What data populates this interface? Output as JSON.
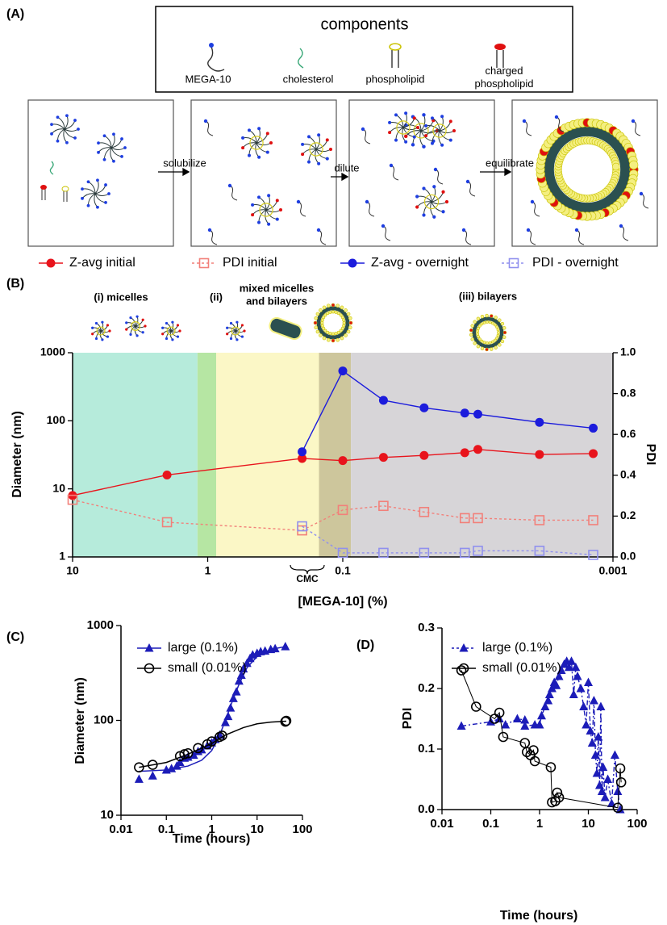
{
  "diagram": {
    "label": "(A)",
    "components_title": "components",
    "components": [
      "MEGA-10",
      "cholesterol",
      "phospholipid",
      "charged phospholipid"
    ],
    "steps": [
      "solubilize",
      "dilute",
      "equilibrate"
    ]
  },
  "chart_data": [
    {
      "type": "line",
      "panel": "(B)",
      "x_label": "[MEGA-10] (%)",
      "y_label": "Diameter (nm)",
      "y2_label": "PDI",
      "xscale": "log",
      "yscale": "log",
      "xlim": [
        10,
        0.001
      ],
      "xticks": [
        10,
        1,
        0.1,
        0.001
      ],
      "ylim": [
        1,
        1000
      ],
      "yticks": [
        1,
        10,
        100,
        1000
      ],
      "y2lim": [
        0,
        1
      ],
      "y2ticks": [
        {
          "value": 0,
          "label": "0.0"
        },
        0.2,
        0.4,
        0.6,
        0.8,
        {
          "value": 1,
          "label": "1.0"
        }
      ],
      "legend": "top",
      "regions": [
        {
          "from": 10,
          "to": 1.19,
          "color": "#b6ebdb"
        },
        {
          "from": 1.19,
          "to": 0.865,
          "color": "#b6e6a3"
        },
        {
          "from": 0.865,
          "to": 0.15,
          "color": "#fbf7c6"
        },
        {
          "from": 0.15,
          "to": 0.087,
          "color": "#cdc69c"
        },
        {
          "from": 0.087,
          "to": 0.001,
          "color": "#d7d5d8"
        }
      ],
      "annotations": [
        "(i) micelles",
        "(ii)",
        "mixed micelles",
        "and bilayers",
        "(iii) bilayers",
        "CMC"
      ],
      "series": [
        {
          "name": "Z-avg initial",
          "color": "#e8141c",
          "marker": "circle",
          "dash": false,
          "x": [
            10,
            2,
            0.2,
            0.1,
            0.05,
            0.025,
            0.0125,
            0.01,
            0.0035,
            0.0014
          ],
          "values": [
            8,
            16,
            28,
            26,
            29,
            31,
            34,
            38,
            32,
            33
          ]
        },
        {
          "name": "PDI initial",
          "color": "#f2807a",
          "marker": "square-open",
          "dash": true,
          "axis": "y2",
          "x": [
            10,
            2,
            0.2,
            0.1,
            0.05,
            0.025,
            0.0125,
            0.01,
            0.0035,
            0.0014
          ],
          "values": [
            0.28,
            0.17,
            0.13,
            0.23,
            0.25,
            0.22,
            0.19,
            0.19,
            0.18,
            0.18
          ]
        },
        {
          "name": "Z-avg - overnight",
          "color": "#1c1cdc",
          "marker": "circle",
          "dash": false,
          "x": [
            0.2,
            0.1,
            0.05,
            0.025,
            0.0125,
            0.01,
            0.0035,
            0.0014
          ],
          "values": [
            35,
            540,
            200,
            155,
            130,
            125,
            95,
            78
          ]
        },
        {
          "name": "PDI - overnight",
          "color": "#9090ee",
          "marker": "square-open",
          "dash": true,
          "axis": "y2",
          "x": [
            0.2,
            0.1,
            0.05,
            0.025,
            0.0125,
            0.01,
            0.0035,
            0.0014
          ],
          "values": [
            0.15,
            0.02,
            0.02,
            0.02,
            0.02,
            0.03,
            0.03,
            0.01
          ]
        }
      ]
    },
    {
      "type": "scatter",
      "panel": "(C)",
      "x_label": "Time (hours)",
      "y_label": "Diameter  (nm)",
      "xscale": "log",
      "yscale": "log",
      "xlim": [
        0.01,
        100
      ],
      "xticks": [
        0.01,
        0.1,
        1,
        10,
        100
      ],
      "ylim": [
        10,
        1000
      ],
      "yticks": [
        10,
        100,
        1000
      ],
      "legend": "upper left",
      "series": [
        {
          "name": "large (0.1%)",
          "color": "#1c1cb8",
          "marker": "triangle",
          "x": [
            0.025,
            0.05,
            0.1,
            0.13,
            0.17,
            0.2,
            0.25,
            0.3,
            0.4,
            0.5,
            0.6,
            0.8,
            1.0,
            1.2,
            1.5,
            2.0,
            2.3,
            2.6,
            3.0,
            3.5,
            4,
            4.5,
            5,
            6,
            7,
            8,
            10,
            12,
            15,
            20,
            25,
            42
          ],
          "values": [
            24,
            26,
            30,
            31,
            33,
            36,
            40,
            41,
            43,
            47,
            49,
            54,
            58,
            63,
            70,
            95,
            110,
            135,
            170,
            200,
            260,
            300,
            350,
            400,
            450,
            490,
            510,
            530,
            540,
            560,
            570,
            600
          ],
          "fit": {
            "x": [
              0.025,
              0.1,
              0.3,
              0.6,
              1,
              1.5,
              2,
              3,
              4,
              6,
              10,
              20,
              42
            ],
            "values": [
              29,
              30,
              33,
              38,
              48,
              70,
              100,
              170,
              240,
              360,
              470,
              560,
              600
            ]
          }
        },
        {
          "name": "small (0.01%)",
          "color": "#000000",
          "marker": "circle-open",
          "x": [
            0.025,
            0.05,
            0.2,
            0.25,
            0.3,
            0.5,
            0.8,
            1.0,
            1.5,
            1.7,
            42,
            44
          ],
          "values": [
            32,
            34,
            42,
            44,
            45,
            51,
            56,
            60,
            67,
            69,
            97,
            99
          ],
          "fit": {
            "x": [
              0.025,
              0.1,
              0.3,
              1,
              2,
              5,
              10,
              20,
              44
            ],
            "values": [
              32,
              36,
              44,
              57,
              70,
              84,
              92,
              96,
              98
            ]
          }
        }
      ]
    },
    {
      "type": "line",
      "panel": "(D)",
      "x_label": "Time (hours)",
      "y_label": "PDI",
      "xscale": "log",
      "xlim": [
        0.01,
        100
      ],
      "xticks": [
        0.01,
        0.1,
        1,
        10,
        100
      ],
      "ylim": [
        0,
        0.3
      ],
      "yticks": [
        {
          "value": 0,
          "label": "0.0"
        },
        0.1,
        0.2,
        0.3
      ],
      "legend": "upper left",
      "series": [
        {
          "name": "large (0.1%)",
          "color": "#1c1cb8",
          "marker": "triangle",
          "dash": true,
          "x": [
            0.025,
            0.1,
            0.15,
            0.2,
            0.35,
            0.5,
            0.5,
            0.8,
            1.0,
            1.1,
            1.3,
            1.5,
            1.6,
            1.8,
            2.0,
            2.2,
            2.5,
            2.8,
            3.2,
            3.6,
            4.0,
            4.5,
            5,
            5.5,
            6,
            7,
            8,
            9,
            10,
            11,
            12,
            13,
            14,
            15,
            16,
            17,
            18,
            19,
            20,
            22,
            25,
            30,
            35,
            40,
            45
          ],
          "values": [
            0.138,
            0.145,
            0.15,
            0.14,
            0.15,
            0.148,
            0.138,
            0.14,
            0.14,
            0.155,
            0.17,
            0.18,
            0.19,
            0.2,
            0.21,
            0.205,
            0.22,
            0.23,
            0.24,
            0.245,
            0.235,
            0.245,
            0.19,
            0.235,
            0.22,
            0.2,
            0.17,
            0.14,
            0.21,
            0.13,
            0.11,
            0.18,
            0.09,
            0.06,
            0.12,
            0.04,
            0.17,
            0.03,
            0.07,
            0.02,
            0.05,
            0.01,
            0.09,
            0.03,
            0.0
          ]
        },
        {
          "name": "small (0.01%)",
          "color": "#000000",
          "marker": "circle-open",
          "dash": false,
          "x": [
            0.025,
            0.05,
            0.12,
            0.15,
            0.18,
            0.5,
            0.55,
            0.65,
            0.75,
            0.8,
            1.7,
            1.8,
            2.1,
            2.3,
            2.5,
            40,
            45,
            47
          ],
          "values": [
            0.23,
            0.17,
            0.15,
            0.16,
            0.12,
            0.11,
            0.095,
            0.09,
            0.098,
            0.08,
            0.07,
            0.012,
            0.014,
            0.028,
            0.02,
            0.003,
            0.068,
            0.045
          ]
        }
      ]
    }
  ]
}
